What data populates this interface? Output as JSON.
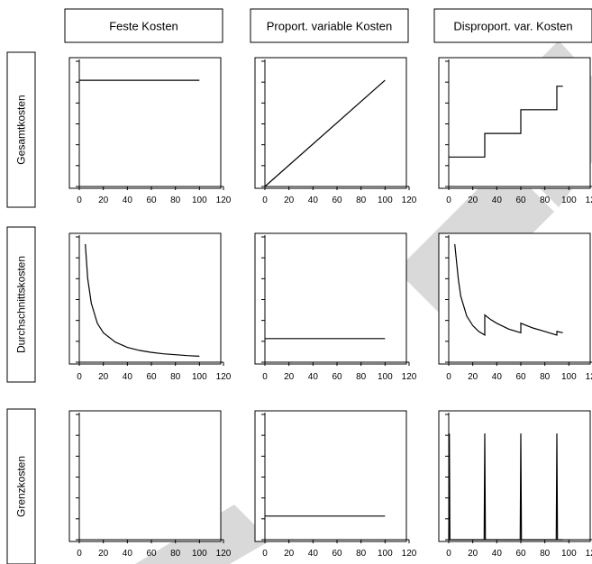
{
  "columns": [
    "Feste Kosten",
    "Proport. variable Kosten",
    "Disproport. var. Kosten"
  ],
  "rows": [
    "Gesamtkosten",
    "Durchschnittskosten",
    "Grenzkosten"
  ],
  "x_tick_labels": [
    "0",
    "20",
    "40",
    "60",
    "80",
    "100",
    "120"
  ],
  "colors": {
    "line": "#000000",
    "watermark": "#d9d9d9",
    "background": "#ffffff"
  },
  "chart_data": [
    {
      "type": "line",
      "row": "Gesamtkosten",
      "column": "Feste Kosten",
      "xlim": [
        0,
        120
      ],
      "ylim": [
        0,
        10
      ],
      "series": [
        {
          "x": [
            0,
            100
          ],
          "y": [
            9,
            9
          ]
        }
      ]
    },
    {
      "type": "line",
      "row": "Gesamtkosten",
      "column": "Proport. variable Kosten",
      "xlim": [
        0,
        120
      ],
      "ylim": [
        0,
        10
      ],
      "series": [
        {
          "x": [
            0,
            100
          ],
          "y": [
            0,
            9
          ]
        }
      ]
    },
    {
      "type": "line",
      "row": "Gesamtkosten",
      "column": "Disproport. var. Kosten",
      "xlim": [
        0,
        120
      ],
      "ylim": [
        0,
        10
      ],
      "series": [
        {
          "x": [
            0,
            30,
            30,
            60,
            60,
            90,
            90,
            95
          ],
          "y": [
            2.5,
            2.5,
            4.5,
            4.5,
            6.5,
            6.5,
            8.5,
            8.5
          ]
        }
      ]
    },
    {
      "type": "line",
      "row": "Durchschnittskosten",
      "column": "Feste Kosten",
      "xlim": [
        0,
        120
      ],
      "ylim": [
        0,
        10
      ],
      "series": [
        {
          "x": [
            5,
            7,
            10,
            15,
            20,
            30,
            40,
            50,
            60,
            70,
            80,
            90,
            100
          ],
          "y": [
            10,
            7.1,
            5,
            3.3,
            2.5,
            1.7,
            1.25,
            1.0,
            0.83,
            0.71,
            0.63,
            0.56,
            0.5
          ]
        }
      ]
    },
    {
      "type": "line",
      "row": "Durchschnittskosten",
      "column": "Proport. variable Kosten",
      "xlim": [
        0,
        120
      ],
      "ylim": [
        0,
        10
      ],
      "series": [
        {
          "x": [
            0,
            100
          ],
          "y": [
            2,
            2
          ]
        }
      ]
    },
    {
      "type": "line",
      "row": "Durchschnittskosten",
      "column": "Disproport. var. Kosten",
      "xlim": [
        0,
        120
      ],
      "ylim": [
        0,
        10
      ],
      "series": [
        {
          "x": [
            5,
            8,
            10,
            15,
            20,
            25,
            30,
            30,
            35,
            40,
            50,
            60,
            60,
            70,
            80,
            90,
            90,
            95
          ],
          "y": [
            10,
            7,
            5.6,
            3.9,
            3.1,
            2.6,
            2.3,
            4.0,
            3.6,
            3.3,
            2.8,
            2.5,
            3.3,
            2.9,
            2.6,
            2.3,
            2.6,
            2.5
          ]
        }
      ]
    },
    {
      "type": "line",
      "row": "Grenzkosten",
      "column": "Feste Kosten",
      "xlim": [
        0,
        120
      ],
      "ylim": [
        0,
        10
      ],
      "series": []
    },
    {
      "type": "line",
      "row": "Grenzkosten",
      "column": "Proport. variable Kosten",
      "xlim": [
        0,
        120
      ],
      "ylim": [
        0,
        10
      ],
      "series": [
        {
          "x": [
            0,
            100
          ],
          "y": [
            2,
            2
          ]
        }
      ]
    },
    {
      "type": "line",
      "row": "Grenzkosten",
      "column": "Disproport. var. Kosten",
      "xlim": [
        0,
        120
      ],
      "ylim": [
        0,
        10
      ],
      "series": [
        {
          "x": [
            0,
            0.5,
            1,
            29.5,
            30,
            30.5,
            59.5,
            60,
            60.5,
            89.5,
            90,
            90.5,
            95
          ],
          "y": [
            0,
            9,
            0,
            0,
            9,
            0,
            0,
            9,
            0,
            0,
            9,
            0,
            0
          ]
        }
      ]
    }
  ]
}
